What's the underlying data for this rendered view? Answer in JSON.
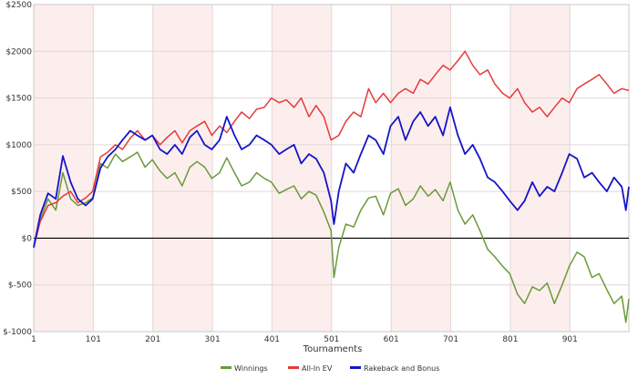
{
  "chart_data": {
    "type": "line",
    "title": "",
    "xlabel": "Tournaments",
    "ylabel": "",
    "xlim": [
      1,
      1000
    ],
    "ylim": [
      -1000,
      2500
    ],
    "x_ticks": [
      1,
      101,
      201,
      301,
      401,
      501,
      601,
      701,
      801,
      901
    ],
    "y_ticks": [
      {
        "value": 2500,
        "label": "$2500"
      },
      {
        "value": 2000,
        "label": "$2000"
      },
      {
        "value": 1500,
        "label": "$1500"
      },
      {
        "value": 1000,
        "label": "$1000"
      },
      {
        "value": 500,
        "label": "$500"
      },
      {
        "value": 0,
        "label": "$0"
      },
      {
        "value": -500,
        "label": "$-500"
      },
      {
        "value": -1000,
        "label": "$-1000"
      }
    ],
    "grid": true,
    "shaded_bands": [
      [
        1,
        101
      ],
      [
        201,
        301
      ],
      [
        401,
        501
      ],
      [
        601,
        701
      ],
      [
        801,
        901
      ]
    ],
    "legend_position": "bottom-center",
    "colors": {
      "band": "#fdeeee",
      "grid": "#e4d6d6",
      "zero_line": "#000000",
      "axis": "#c9c9c9"
    },
    "series": [
      {
        "name": "Winnings",
        "color": "#6a9a3a",
        "x": [
          1,
          12,
          25,
          38,
          50,
          63,
          75,
          88,
          100,
          113,
          125,
          138,
          150,
          163,
          175,
          188,
          200,
          213,
          225,
          238,
          250,
          263,
          275,
          288,
          300,
          313,
          325,
          338,
          350,
          363,
          375,
          388,
          400,
          413,
          425,
          438,
          450,
          463,
          475,
          488,
          500,
          505,
          513,
          525,
          538,
          550,
          563,
          575,
          588,
          600,
          613,
          625,
          638,
          650,
          663,
          675,
          688,
          700,
          713,
          725,
          738,
          750,
          763,
          775,
          788,
          800,
          813,
          825,
          838,
          850,
          863,
          875,
          888,
          900,
          913,
          925,
          938,
          950,
          963,
          975,
          988,
          995,
          1000
        ],
        "y": [
          -100,
          200,
          420,
          300,
          700,
          420,
          350,
          380,
          430,
          800,
          750,
          900,
          820,
          870,
          920,
          760,
          840,
          720,
          640,
          700,
          560,
          760,
          820,
          760,
          640,
          700,
          860,
          700,
          560,
          600,
          700,
          640,
          600,
          480,
          520,
          560,
          420,
          500,
          460,
          280,
          80,
          -420,
          -100,
          150,
          120,
          300,
          430,
          450,
          250,
          480,
          530,
          350,
          420,
          560,
          450,
          520,
          400,
          600,
          300,
          150,
          250,
          80,
          -120,
          -200,
          -300,
          -380,
          -600,
          -700,
          -520,
          -560,
          -480,
          -700,
          -500,
          -300,
          -150,
          -200,
          -420,
          -380,
          -550,
          -700,
          -620,
          -900,
          -650
        ]
      },
      {
        "name": "All-In EV",
        "color": "#e53a3a",
        "x": [
          1,
          12,
          25,
          38,
          50,
          63,
          75,
          88,
          100,
          113,
          125,
          138,
          150,
          163,
          175,
          188,
          200,
          213,
          225,
          238,
          250,
          263,
          275,
          288,
          300,
          313,
          325,
          338,
          350,
          363,
          375,
          388,
          400,
          413,
          425,
          438,
          450,
          463,
          475,
          488,
          500,
          513,
          525,
          538,
          550,
          563,
          575,
          588,
          600,
          613,
          625,
          638,
          650,
          663,
          675,
          688,
          700,
          713,
          725,
          738,
          750,
          763,
          775,
          788,
          800,
          813,
          825,
          838,
          850,
          863,
          875,
          888,
          900,
          913,
          925,
          938,
          950,
          963,
          975,
          988,
          1000
        ],
        "y": [
          -100,
          180,
          350,
          380,
          450,
          500,
          380,
          430,
          500,
          870,
          920,
          1000,
          950,
          1070,
          1150,
          1050,
          1100,
          1000,
          1080,
          1150,
          1020,
          1150,
          1200,
          1250,
          1100,
          1200,
          1130,
          1250,
          1350,
          1280,
          1380,
          1400,
          1500,
          1450,
          1480,
          1400,
          1500,
          1300,
          1420,
          1300,
          1050,
          1100,
          1250,
          1350,
          1300,
          1600,
          1450,
          1550,
          1450,
          1550,
          1600,
          1550,
          1700,
          1650,
          1750,
          1850,
          1800,
          1900,
          2000,
          1850,
          1750,
          1800,
          1650,
          1550,
          1500,
          1600,
          1450,
          1350,
          1400,
          1300,
          1400,
          1500,
          1450,
          1600,
          1650,
          1700,
          1750,
          1650,
          1550,
          1600,
          1580
        ]
      },
      {
        "name": "Rakeback and Bonus",
        "color": "#1515c8",
        "x": [
          1,
          12,
          25,
          38,
          50,
          63,
          75,
          88,
          100,
          113,
          125,
          138,
          150,
          163,
          175,
          188,
          200,
          213,
          225,
          238,
          250,
          263,
          275,
          288,
          300,
          313,
          325,
          338,
          350,
          363,
          375,
          388,
          400,
          413,
          425,
          438,
          450,
          463,
          475,
          488,
          500,
          505,
          513,
          525,
          538,
          550,
          563,
          575,
          588,
          600,
          613,
          625,
          638,
          650,
          663,
          675,
          688,
          700,
          713,
          725,
          738,
          750,
          763,
          775,
          788,
          800,
          813,
          825,
          838,
          850,
          863,
          875,
          888,
          900,
          913,
          925,
          938,
          950,
          963,
          975,
          988,
          995,
          1000
        ],
        "y": [
          -100,
          250,
          480,
          420,
          880,
          600,
          420,
          350,
          420,
          750,
          870,
          950,
          1050,
          1150,
          1100,
          1050,
          1100,
          950,
          900,
          1000,
          900,
          1080,
          1150,
          1000,
          950,
          1050,
          1300,
          1100,
          950,
          1000,
          1100,
          1050,
          1000,
          900,
          950,
          1000,
          800,
          900,
          850,
          700,
          400,
          150,
          500,
          800,
          700,
          900,
          1100,
          1050,
          900,
          1200,
          1300,
          1050,
          1250,
          1350,
          1200,
          1300,
          1100,
          1400,
          1100,
          900,
          1000,
          850,
          650,
          600,
          500,
          400,
          300,
          400,
          600,
          450,
          550,
          500,
          700,
          900,
          850,
          650,
          700,
          600,
          500,
          650,
          550,
          300,
          550
        ]
      }
    ]
  }
}
